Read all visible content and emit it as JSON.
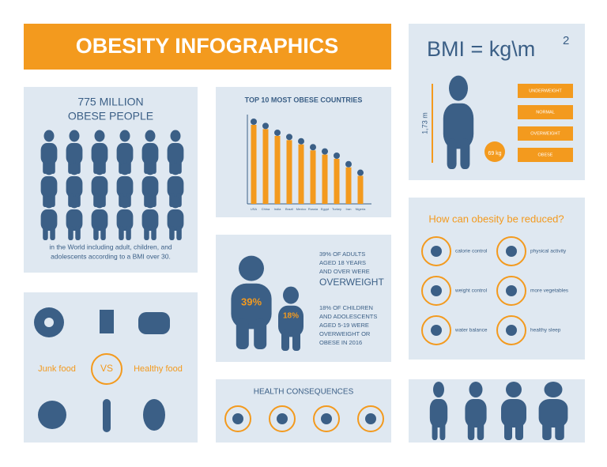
{
  "header": {
    "title": "OBESITY INFOGRAPHICS"
  },
  "bmi": {
    "formula": "BMI = kg\\m",
    "exponent": "2",
    "height": "1,73 m",
    "weight": "69 kg",
    "categories": [
      "UNDERWEIGHT",
      "NORMAL",
      "OVERWEIGHT",
      "OBESE"
    ]
  },
  "people": {
    "title": [
      "775 MILLION",
      "OBESE PEOPLE"
    ],
    "caption": [
      "in the World including adult, children, and",
      "adolescents according to a BMI over 30."
    ]
  },
  "chart_data": {
    "type": "bar",
    "title": "TOP 10 MOST OBESE COUNTRIES",
    "categories": [
      "USA",
      "China",
      "India",
      "Brazil",
      "Mexico",
      "Russia",
      "Egypt",
      "Turkey",
      "Iran",
      "Nigeria"
    ],
    "values": [
      93,
      88,
      80,
      75,
      70,
      63,
      58,
      53,
      43,
      33
    ],
    "color": "#f39a1e"
  },
  "overweight": {
    "adult_percent": "39%",
    "child_percent": "18%",
    "adults_text": [
      "39% OF ADULTS",
      "AGED 18 YEARS",
      "AND OVER WERE"
    ],
    "adults_highlight": "OVERWEIGHT",
    "children_text": [
      "18% OF CHILDREN",
      "AND ADOLESCENTS",
      "AGED 5-19 WERE",
      "OVERWEIGHT OR",
      "OBESE IN 2016"
    ]
  },
  "reduce": {
    "title": "How can obesity be reduced?",
    "items": [
      "calorie control",
      "physical activity",
      "weight control",
      "more vegetables",
      "water balance",
      "healthy sleep"
    ]
  },
  "food": {
    "junk": "Junk food",
    "versus": "VS",
    "healthy": "Healthy food"
  },
  "health": {
    "title": "HEALTH CONSEQUENCES"
  }
}
